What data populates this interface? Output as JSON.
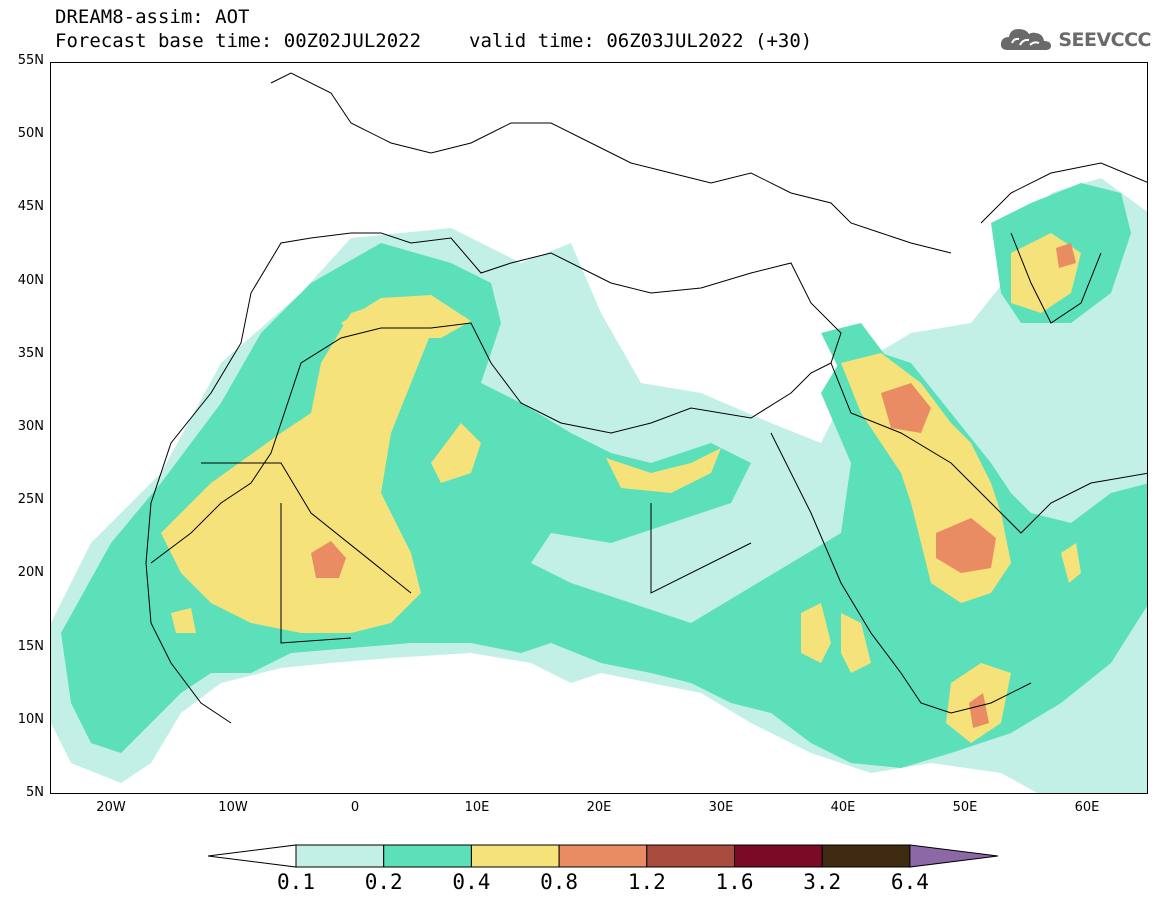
{
  "title": {
    "line1": "DREAM8-assim: AOT",
    "base": "Forecast base time: 00Z02JUL2022",
    "valid": "valid time: 06Z03JUL2022 (+30)"
  },
  "logo": {
    "text": "SEEVCCC",
    "icon": "cloud-icon"
  },
  "map": {
    "lon_range": [
      -25,
      65
    ],
    "lat_range": [
      5,
      55
    ],
    "lat_ticks": [
      "55N",
      "50N",
      "45N",
      "40N",
      "35N",
      "30N",
      "25N",
      "20N",
      "15N",
      "10N",
      "5N"
    ],
    "lon_ticks": [
      "20W",
      "10W",
      "0",
      "10E",
      "20E",
      "30E",
      "40E",
      "50E",
      "60E"
    ]
  },
  "colorbar": {
    "labels": [
      "0.1",
      "0.2",
      "0.4",
      "0.8",
      "1.2",
      "1.6",
      "3.2",
      "6.4"
    ],
    "colors": [
      "#ffffff",
      "#c2f0e6",
      "#5be0b9",
      "#f6e27a",
      "#e98b63",
      "#a84d3e",
      "#7a0a25",
      "#3f2a12",
      "#8c68a6"
    ]
  },
  "legend_levels": {
    "c1": "#c2f0e6",
    "c2": "#5be0b9",
    "c3": "#f6e27a",
    "c4": "#e98b63",
    "c5": "#d06a55"
  }
}
